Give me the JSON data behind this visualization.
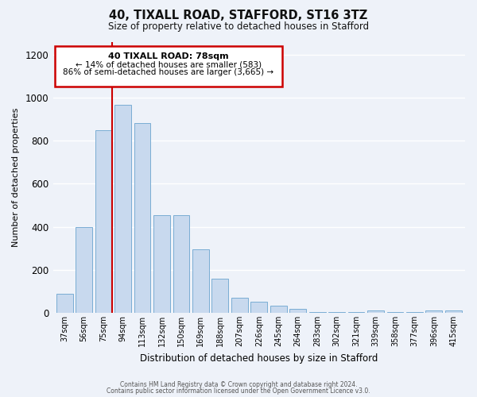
{
  "title": "40, TIXALL ROAD, STAFFORD, ST16 3TZ",
  "subtitle": "Size of property relative to detached houses in Stafford",
  "xlabel": "Distribution of detached houses by size in Stafford",
  "ylabel": "Number of detached properties",
  "bar_labels": [
    "37sqm",
    "56sqm",
    "75sqm",
    "94sqm",
    "113sqm",
    "132sqm",
    "150sqm",
    "169sqm",
    "188sqm",
    "207sqm",
    "226sqm",
    "245sqm",
    "264sqm",
    "283sqm",
    "302sqm",
    "321sqm",
    "339sqm",
    "358sqm",
    "377sqm",
    "396sqm",
    "415sqm"
  ],
  "bar_values": [
    90,
    400,
    850,
    965,
    880,
    455,
    455,
    295,
    160,
    70,
    50,
    32,
    20,
    5,
    3,
    2,
    10,
    2,
    2,
    10,
    10
  ],
  "bar_color": "#c8d9ee",
  "bar_edge_color": "#7aadd4",
  "vline_color": "#cc0000",
  "vline_x_index": 2.43,
  "annotation_title": "40 TIXALL ROAD: 78sqm",
  "annotation_line1": "← 14% of detached houses are smaller (583)",
  "annotation_line2": "86% of semi-detached houses are larger (3,665) →",
  "annotation_box_edge_color": "#cc0000",
  "ylim": [
    0,
    1260
  ],
  "yticks": [
    0,
    200,
    400,
    600,
    800,
    1000,
    1200
  ],
  "background_color": "#eef2f9",
  "grid_color": "#ffffff",
  "footer1": "Contains HM Land Registry data © Crown copyright and database right 2024.",
  "footer2": "Contains public sector information licensed under the Open Government Licence v3.0."
}
